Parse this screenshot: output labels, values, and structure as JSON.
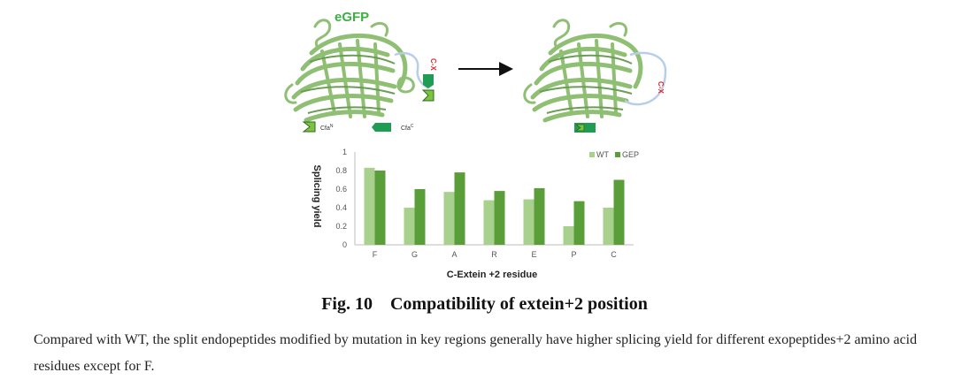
{
  "diagram": {
    "protein_label": "eGFP",
    "tag_cx": "C-X",
    "legend_cfaN": "Cfa",
    "legend_cfaN_sup": "N",
    "legend_cfaC": "Cfa",
    "legend_cfaC_sup": "C",
    "colors": {
      "barrel": "#8fbf73",
      "barrel_dark": "#6b9e55",
      "linker": "#b7cfe6",
      "cfaN": "#7fc241",
      "cfaC": "#1f9d55",
      "arrow": "#111111",
      "tag_red": "#e0242b"
    }
  },
  "chart_data": {
    "type": "bar",
    "categories": [
      "F",
      "G",
      "A",
      "R",
      "E",
      "P",
      "C"
    ],
    "series": [
      {
        "name": "WT",
        "values": [
          0.83,
          0.4,
          0.57,
          0.48,
          0.49,
          0.2,
          0.4
        ],
        "color": "#a9d18e"
      },
      {
        "name": "GEP",
        "values": [
          0.8,
          0.6,
          0.78,
          0.58,
          0.61,
          0.47,
          0.7
        ],
        "color": "#5a9e3a"
      }
    ],
    "xlabel": "C-Extein +2 residue",
    "ylabel": "Splicing yield",
    "ylim": [
      0,
      1
    ],
    "yticks": [
      "0",
      "0.2",
      "0.4",
      "0.6",
      "0.8",
      "1"
    ],
    "legend_position": "top-right",
    "grid": false
  },
  "caption": {
    "title": "Fig. 10    Compatibility of extein+2 position",
    "text": "Compared with WT, the split endopeptides modified by mutation in key regions generally have higher splicing yield for different exopeptides+2 amino acid residues except for F."
  }
}
